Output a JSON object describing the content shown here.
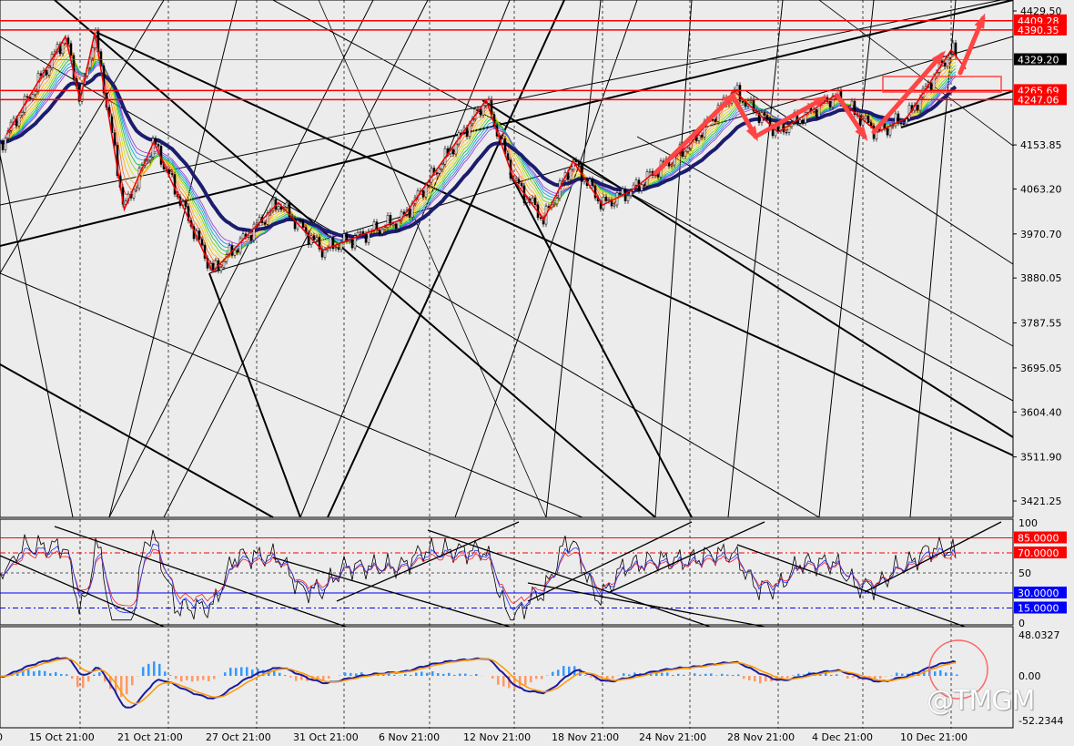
{
  "chart_data": {
    "type": "line",
    "title": "",
    "x_tick_labels": [
      "15 Oct 21:00",
      "21 Oct 21:00",
      "27 Oct 21:00",
      "31 Oct 21:00",
      "6 Nov 21:00",
      "12 Nov 21:00",
      "18 Nov 21:00",
      "24 Nov 21:00",
      "28 Nov 21:00",
      "4 Dec 21:00",
      "10 Dec 21:00"
    ],
    "price_axis": {
      "ticks": [
        "4429.50",
        "4153.85",
        "4063.20",
        "3970.70",
        "3880.05",
        "3787.55",
        "3695.05",
        "3604.40",
        "3511.90",
        "3421.25"
      ],
      "ylim": [
        3400,
        4440
      ]
    },
    "price_series": [
      [
        "10 Oct",
        4175
      ],
      [
        "14 Oct",
        4377
      ],
      [
        "15 Oct",
        4246
      ],
      [
        "16 Oct",
        4385
      ],
      [
        "18 Oct",
        4021
      ],
      [
        "20 Oct",
        4160
      ],
      [
        "24 Oct",
        3893
      ],
      [
        "28 Oct",
        4035
      ],
      [
        "30 Oct",
        3937
      ],
      [
        "4 Nov",
        4000
      ],
      [
        "10 Nov",
        4246
      ],
      [
        "12 Nov",
        4080
      ],
      [
        "14 Nov",
        4000
      ],
      [
        "16 Nov",
        4120
      ],
      [
        "18 Nov",
        4030
      ],
      [
        "20 Nov",
        4060
      ],
      [
        "24 Nov",
        4155
      ],
      [
        "26 Nov",
        4265
      ],
      [
        "28 Nov",
        4180
      ],
      [
        "2 Dec",
        4255
      ],
      [
        "5 Dec",
        4180
      ],
      [
        "7 Dec",
        4210
      ],
      [
        "10 Dec",
        4349
      ],
      [
        "11 Dec",
        4310
      ]
    ],
    "price_levels": [
      {
        "label": "4409.28",
        "value": 4409.28,
        "color": "#ff0000"
      },
      {
        "label": "4390.35",
        "value": 4390.35,
        "color": "#ff0000"
      },
      {
        "label": "4329.20",
        "value": 4329.2,
        "color": "#000000",
        "line": "#3060ff"
      },
      {
        "label": "4265.69",
        "value": 4265.69,
        "color": "#ff0000"
      },
      {
        "label": "4247.06",
        "value": 4247.06,
        "color": "#ff0000"
      }
    ],
    "rsi_panel": {
      "ticks": [
        "100",
        "50",
        "0"
      ],
      "levels": [
        {
          "label": "85.0000",
          "value": 85,
          "color": "#ff0000"
        },
        {
          "label": "70.0000",
          "value": 70,
          "color": "#ff0000"
        },
        {
          "label": "30.0000",
          "value": 30,
          "color": "#0000ff"
        },
        {
          "label": "15.0000",
          "value": 15,
          "color": "#0000ff"
        }
      ],
      "ylim": [
        0,
        100
      ]
    },
    "macd_panel": {
      "ticks": [
        "48.0327",
        "0.00",
        "-52.2344"
      ],
      "ylim": [
        -52.2344,
        48.0327
      ]
    },
    "colors": {
      "background": "#ececec",
      "ma_slow": "#1c1c6e",
      "annotation": "#ff3333"
    }
  },
  "watermark": "@TMGM"
}
